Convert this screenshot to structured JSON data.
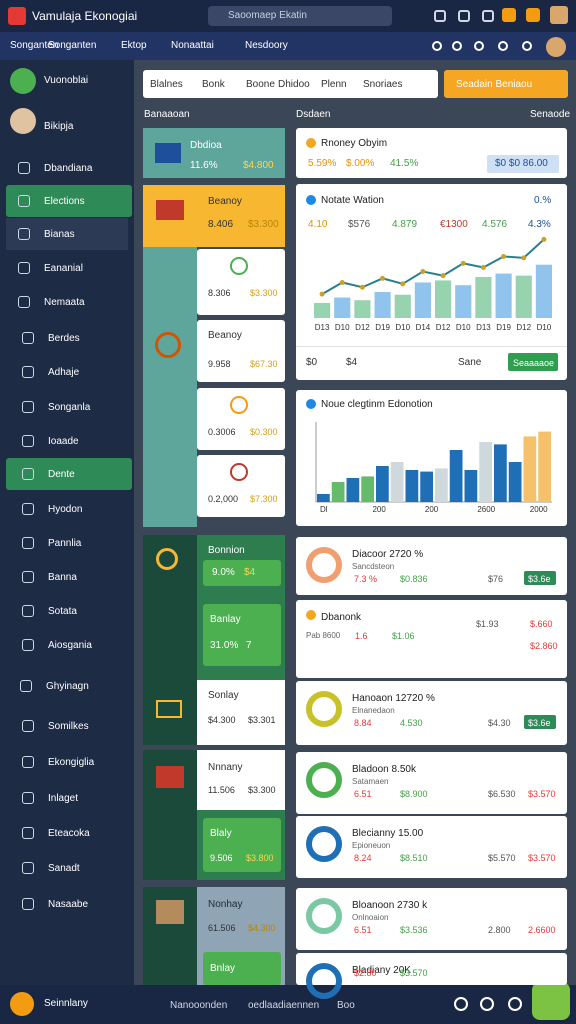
{
  "header": {
    "title": "Vamulaja Ekonogiai",
    "search": "Saoomaep Ekatin"
  },
  "nav": [
    "Songanten",
    "Ektop",
    "Nonaattai",
    "Nesdoory"
  ],
  "sidebar": {
    "profile": "Vuonoblai",
    "items": [
      "Bikipja",
      "Dbandiana",
      "Elections",
      "Bianas",
      "Eananial",
      "Nemaata",
      "Berdes",
      "Adhaje",
      "Songanla",
      "Ioaade",
      "Dente",
      "Hyodon",
      "Pannlia",
      "Banna",
      "Sotata",
      "Aiosgania",
      "Ghyinagn",
      "Somilkes",
      "Ekongiglia",
      "Inlaget",
      "Eteacoka",
      "Sanadt",
      "Nasaabe"
    ]
  },
  "filters": [
    "Blalnes",
    "Bonk",
    "Boone",
    "Dhidoo",
    "Plenn",
    "Snoriaes"
  ],
  "action_button": "Seadain Beniaou",
  "sections": [
    "Banaaoan",
    "Dsdaen",
    "Senaode"
  ],
  "left_cards": [
    {
      "title": "Dbdioa",
      "stats": [
        "11.6%",
        "$4.800"
      ]
    },
    {
      "title": "Beanoy",
      "stats": [
        "8.406",
        "$3.300"
      ]
    },
    {
      "title": "",
      "stats": [
        "8.306",
        "$3.300"
      ]
    },
    {
      "title": "Beanoy",
      "stats": [
        "9.958",
        "$67.30"
      ]
    },
    {
      "title": "",
      "stats": [
        "0.3006",
        "$0.300"
      ]
    },
    {
      "title": "",
      "stats": [
        "0.2,000",
        "$7.300"
      ]
    },
    {
      "title": "Bonnion",
      "stats": [
        "9.0%",
        "$4"
      ]
    },
    {
      "title": "Banlay",
      "stats": [
        "31.0%",
        "7"
      ]
    },
    {
      "title": "Sonlay",
      "stats": [
        "$4.300",
        "$3.301"
      ]
    },
    {
      "title": "Nnnany",
      "stats": [
        "11.506",
        "$3.300"
      ]
    },
    {
      "title": "Blaly",
      "stats": [
        "9.506",
        "$3.800"
      ]
    },
    {
      "title": "Nonhay",
      "stats": [
        "61.506",
        "$4.300"
      ]
    },
    {
      "title": "Bnlay",
      "stats": []
    }
  ],
  "top_card": {
    "title": "Rnoney Obyim",
    "stats": [
      "5.59%",
      "$.00%",
      "41.5%",
      "$0 $0 86.00"
    ]
  },
  "chart1": {
    "title": "Notate Wation",
    "badge": "0.%",
    "stats": [
      "4.10",
      "$576",
      "4.879",
      "€1300",
      "4.576",
      "4.3%"
    ],
    "categories": [
      "D13",
      "D10",
      "D12",
      "D19",
      "D10",
      "D14",
      "D12",
      "D10",
      "D13",
      "D19",
      "D12",
      "D10"
    ],
    "values": [
      22,
      30,
      26,
      38,
      34,
      52,
      55,
      48,
      60,
      65,
      62,
      78
    ],
    "line": [
      35,
      52,
      45,
      58,
      50,
      68,
      62,
      80,
      74,
      90,
      88,
      115
    ],
    "ylim": [
      0,
      120
    ],
    "footer": [
      "$0",
      "$4",
      "Sane"
    ],
    "button": "Seaaaaoe"
  },
  "chart2": {
    "title": "Noue clegtinm Edonotion",
    "categories": [
      "Dl",
      "200",
      "200",
      "2600",
      "2000"
    ],
    "values": [
      10,
      25,
      30,
      32,
      45,
      50,
      40,
      38,
      42,
      65,
      40,
      75,
      72,
      50,
      82,
      88
    ],
    "ylim": [
      0,
      100
    ]
  },
  "right_cards": [
    {
      "title": "Diacoor 2720 %",
      "subtitle": "Sancdsteon",
      "stats": [
        "7.3 %",
        "$0.836",
        "$76",
        "$3.6e"
      ]
    },
    {
      "title": "Dbanonk",
      "subtitle": "Pab 8600",
      "stats": [
        "1.6",
        "$1.06",
        "$1.93",
        "$.660",
        "$2.860"
      ]
    },
    {
      "title": "Hanoaon 12720 %",
      "subtitle": "Elnanedaon",
      "stats": [
        "8.84",
        "4.530",
        "$4.30",
        "$3.6e"
      ]
    },
    {
      "title": "Bladoon 8.50k",
      "subtitle": "Satamaen",
      "stats": [
        "6.51",
        "$8.900",
        "$6.530",
        "$3.570"
      ]
    },
    {
      "title": "Blecianny 15.00",
      "subtitle": "Epioneuon",
      "stats": [
        "8.24",
        "$8.510",
        "$5.570",
        "$3.570"
      ]
    },
    {
      "title": "Bloanoon 2730 k",
      "subtitle": "Onlnoaion",
      "stats": [
        "6.51",
        "$3.536",
        "2.800",
        "2.6600"
      ]
    },
    {
      "title": "Bladiany 20K",
      "subtitle": "",
      "stats": [
        "$2.80",
        "$3.570"
      ]
    }
  ],
  "footer": {
    "user": "Seinnlany",
    "items": [
      "Nanooonden",
      "oedlaadiaennen",
      "Boo"
    ]
  }
}
